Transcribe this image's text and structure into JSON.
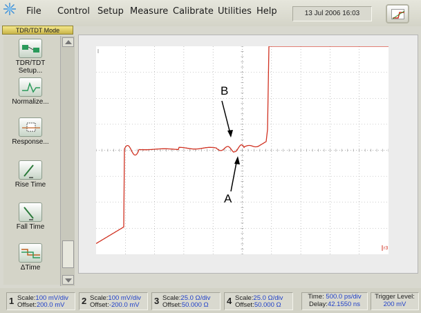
{
  "menu": {
    "file": "File",
    "control": "Control",
    "setup": "Setup",
    "measure": "Measure",
    "calibrate": "Calibrate",
    "utilities": "Utilities",
    "help": "Help"
  },
  "datetime": "13 Jul 2006  16:03",
  "mode_label": "TDR/TDT Mode",
  "toolbar": {
    "items": [
      {
        "label": "TDR/TDT Setup...",
        "icon": "tdr-setup-icon"
      },
      {
        "label": "Normalize...",
        "icon": "normalize-icon"
      },
      {
        "label": "Response...",
        "icon": "response-icon"
      },
      {
        "label": "Rise Time",
        "icon": "rise-time-icon"
      },
      {
        "label": "Fall Time",
        "icon": "fall-time-icon"
      },
      {
        "label": "ΔTime",
        "icon": "delta-time-icon"
      }
    ]
  },
  "display": {
    "marker_label": "r3",
    "annotations": {
      "a": "A",
      "b": "B"
    },
    "colors": {
      "trace": "#d03020",
      "grid": "#9a9a9a"
    }
  },
  "channels": [
    {
      "num": "1",
      "scale_k": "Scale:",
      "scale_v": "100 mV/div",
      "offset_k": "Offset:",
      "offset_v": "200.0 mV"
    },
    {
      "num": "2",
      "scale_k": "Scale:",
      "scale_v": "100 mV/div",
      "offset_k": "Offset:",
      "offset_v": "-200.0 mV"
    },
    {
      "num": "3",
      "scale_k": "Scale:",
      "scale_v": "25.0 Ω/div",
      "offset_k": "Offset:",
      "offset_v": "50.000 Ω"
    },
    {
      "num": "4",
      "scale_k": "Scale:",
      "scale_v": "25.0 Ω/div",
      "offset_k": "Offset:",
      "offset_v": "50.000 Ω"
    }
  ],
  "timebase": {
    "time_k": "Time:",
    "time_v": "500.0 ps/div",
    "delay_k": "Delay:",
    "delay_v": "42.1550 ns"
  },
  "trigger": {
    "label": "Trigger Level:",
    "value": "200 mV"
  }
}
